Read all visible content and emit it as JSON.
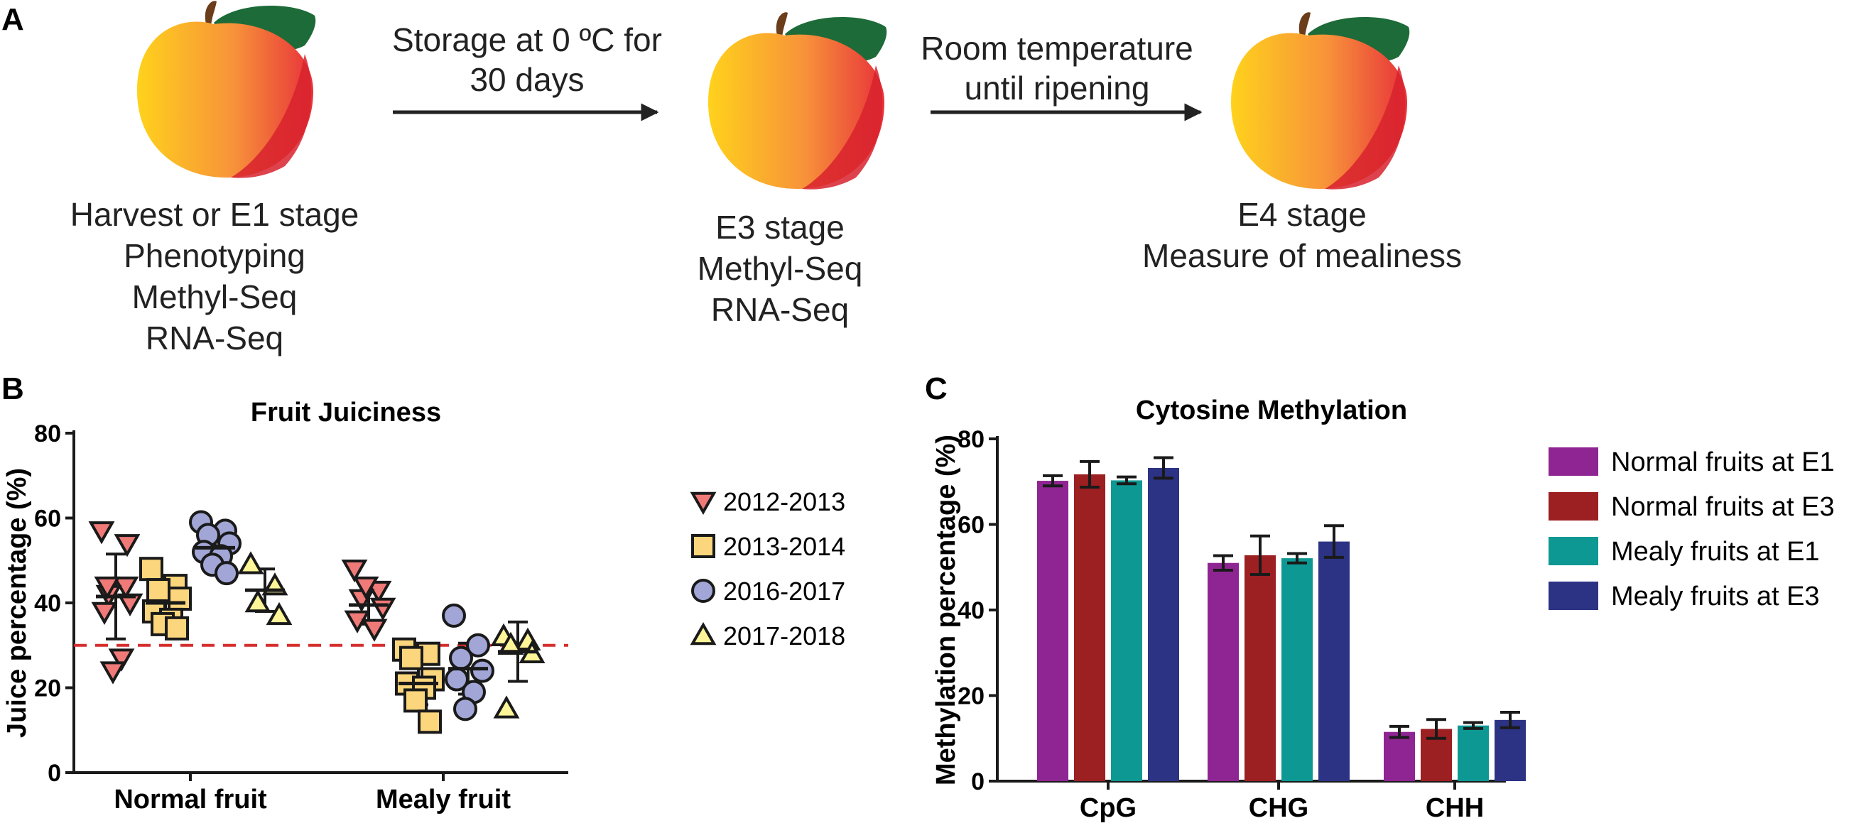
{
  "panels": {
    "a": {
      "letter": "A",
      "stages": [
        {
          "lines": [
            "Harvest or E1 stage",
            "Phenotyping",
            "Methyl-Seq",
            "RNA-Seq"
          ]
        },
        {
          "lines": [
            "E3 stage",
            "Methyl-Seq",
            "RNA-Seq"
          ]
        },
        {
          "lines": [
            "E4 stage",
            "Measure of mealiness"
          ]
        }
      ],
      "arrows": [
        {
          "lines": [
            "Storage at 0 ºC  for",
            "30 days"
          ]
        },
        {
          "lines": [
            "Room temperature",
            "until ripening"
          ]
        }
      ]
    },
    "b": {
      "letter": "B"
    },
    "c": {
      "letter": "C"
    }
  },
  "colors": {
    "s2012": "#f07a77",
    "s2013": "#fbd67c",
    "s2016": "#a1a6d7",
    "s2017": "#fdf597",
    "threshold": "#d62d2d",
    "normal_e1": "#8f2592",
    "normal_e3": "#9c1f22",
    "mealy_e1": "#0e9893",
    "mealy_e3": "#2c3384",
    "peach_light": "#ffd21c",
    "peach_dark": "#e8323a",
    "leaf": "#1d6b38",
    "stem": "#6b3d1a"
  },
  "chart_data": [
    {
      "type": "scatter",
      "title": "Fruit Juiciness",
      "xlabel": "",
      "ylabel": "Juice percentage (%)",
      "ylim": [
        0,
        80
      ],
      "yticks": [
        0,
        20,
        40,
        60,
        80
      ],
      "categories": [
        "Normal fruit",
        "Mealy fruit"
      ],
      "threshold": 30,
      "series": [
        {
          "name": "2012-2013",
          "marker": "triangle-down",
          "color_key": "s2012",
          "points": [
            [
              57,
              44,
              42,
              40,
              38,
              27,
              24,
              54,
              44
            ],
            [
              48,
              43,
              41,
              39,
              36,
              34,
              44
            ]
          ],
          "mean": [
            41.5,
            39.5
          ],
          "sd": [
            10,
            4.5
          ]
        },
        {
          "name": "2013-2014",
          "marker": "square",
          "color_key": "s2013",
          "points": [
            [
              48,
              44,
              43,
              41,
              38,
              36,
              35,
              34
            ],
            [
              29,
              28,
              27,
              22,
              21,
              20,
              17,
              12
            ]
          ],
          "mean": [
            40,
            21
          ],
          "sd": [
            4,
            5
          ]
        },
        {
          "name": "2016-2017",
          "marker": "circle",
          "color_key": "s2016",
          "points": [
            [
              59,
              57,
              56,
              54,
              52,
              51,
              49,
              47
            ],
            [
              37,
              30,
              27,
              24,
              22,
              19,
              15
            ]
          ],
          "mean": [
            53,
            24.5
          ],
          "sd": [
            4,
            6
          ]
        },
        {
          "name": "2017-2018",
          "marker": "triangle-up",
          "color_key": "s2017",
          "points": [
            [
              49,
              44,
              40,
              37
            ],
            [
              32,
              31,
              30,
              28,
              15
            ]
          ],
          "mean": [
            43,
            28.5
          ],
          "sd": [
            5,
            7
          ]
        }
      ]
    },
    {
      "type": "bar",
      "title": "Cytosine Methylation",
      "xlabel": "",
      "ylabel": "Methylation percentage  (%)",
      "ylim": [
        0,
        80
      ],
      "yticks": [
        0,
        20,
        40,
        60,
        80
      ],
      "categories": [
        "CpG",
        "CHG",
        "CHH"
      ],
      "series": [
        {
          "name": "Normal fruits at E1",
          "color_key": "normal_e1",
          "values": [
            70.2,
            51,
            11.5
          ],
          "errors": [
            1.2,
            1.7,
            1.3
          ]
        },
        {
          "name": "Normal fruits at E3",
          "color_key": "normal_e3",
          "values": [
            71.7,
            52.8,
            12.2
          ],
          "errors": [
            3,
            4.5,
            2.2
          ]
        },
        {
          "name": "Mealy fruits at E1",
          "color_key": "mealy_e1",
          "values": [
            70.3,
            52.1,
            13.0
          ],
          "errors": [
            0.8,
            1.1,
            0.7
          ]
        },
        {
          "name": "Mealy fruits at E3",
          "color_key": "mealy_e3",
          "values": [
            73.2,
            56.0,
            14.3
          ],
          "errors": [
            2.4,
            3.7,
            1.8
          ]
        }
      ]
    }
  ]
}
